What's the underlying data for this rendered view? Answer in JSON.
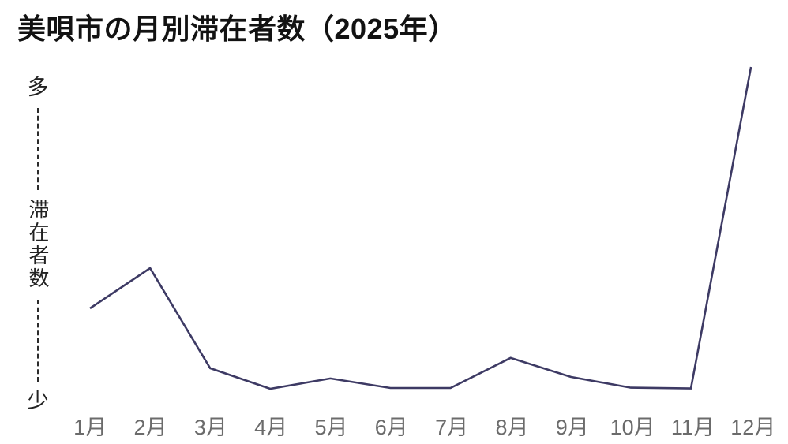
{
  "chart_data": {
    "type": "line",
    "title": "美唄市の月別滞在者数（2025年）",
    "categories": [
      "1月",
      "2月",
      "3月",
      "4月",
      "5月",
      "6月",
      "7月",
      "8月",
      "9月",
      "10月",
      "11月",
      "12月"
    ],
    "series": [
      {
        "name": "滞在者数",
        "values": [
          25,
          37.5,
          6.4,
          0,
          3.2,
          0.25,
          0.25,
          9.6,
          3.7,
          0.35,
          0.1,
          100
        ]
      }
    ],
    "value_note": "relative scale 0-100; y-axis is qualitative from 少 (few) to 多 (many), no numeric ticks",
    "xlabel": "",
    "ylabel": "滞在者数",
    "y_axis_top_label": "多",
    "y_axis_bottom_label": "少",
    "ylim": [
      0,
      100
    ],
    "grid": false,
    "legend": false,
    "line_color": "#3d3a64",
    "x_label_color": "#6b6b6b",
    "title_color": "#121212"
  }
}
